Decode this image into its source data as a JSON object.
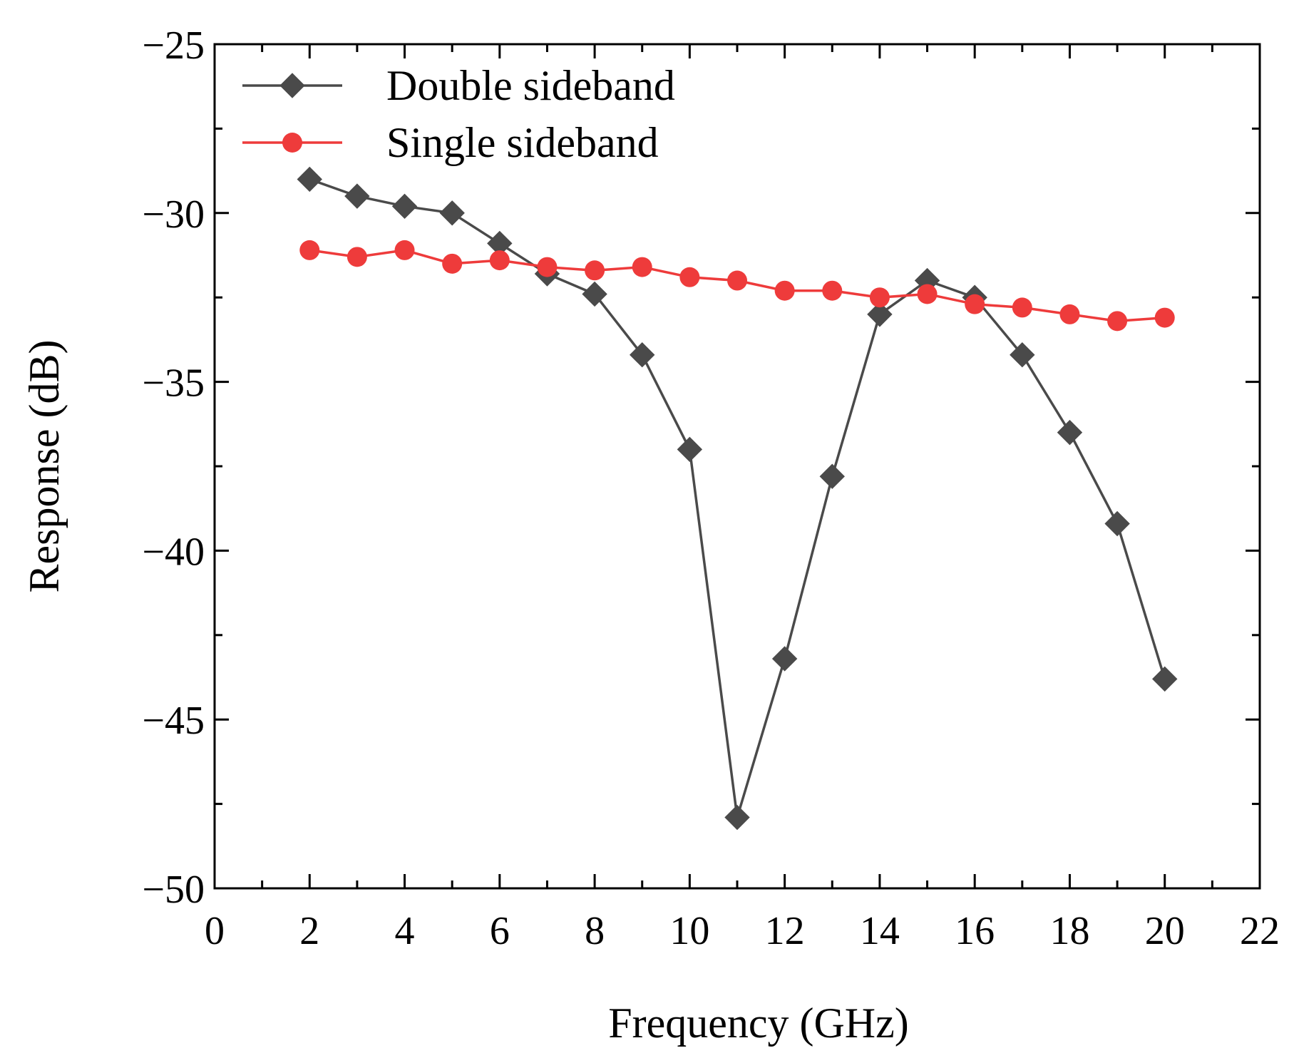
{
  "chart_data": {
    "type": "line",
    "title": "",
    "xlabel": "Frequency (GHz)",
    "ylabel": "Response (dB)",
    "xlim": [
      0,
      22
    ],
    "ylim": [
      -50,
      -25
    ],
    "x_ticks": [
      0,
      2,
      4,
      6,
      8,
      10,
      12,
      14,
      16,
      18,
      20,
      22
    ],
    "x_tick_labels": [
      "0",
      "2",
      "4",
      "6",
      "8",
      "10",
      "12",
      "14",
      "16",
      "18",
      "20",
      "22"
    ],
    "y_ticks": [
      -50,
      -45,
      -40,
      -35,
      -30,
      -25
    ],
    "y_tick_labels": [
      "−50",
      "−45",
      "−40",
      "−35",
      "−30",
      "−25"
    ],
    "grid": false,
    "legend_position": "top-left",
    "x": [
      2,
      3,
      4,
      5,
      6,
      7,
      8,
      9,
      10,
      11,
      12,
      13,
      14,
      15,
      16,
      17,
      18,
      19,
      20
    ],
    "series": [
      {
        "name": "Double sideband",
        "color": "#4a4a4a",
        "marker": "diamond",
        "values": [
          -29.0,
          -29.5,
          -29.8,
          -30.0,
          -30.9,
          -31.8,
          -32.4,
          -34.2,
          -37.0,
          -47.9,
          -43.2,
          -37.8,
          -33.0,
          -32.0,
          -32.5,
          -34.2,
          -36.5,
          -39.2,
          -43.8
        ]
      },
      {
        "name": "Single sideband",
        "color": "#ee3b3b",
        "marker": "circle",
        "values": [
          -31.1,
          -31.3,
          -31.1,
          -31.5,
          -31.4,
          -31.6,
          -31.7,
          -31.6,
          -31.9,
          -32.0,
          -32.3,
          -32.3,
          -32.5,
          -32.4,
          -32.7,
          -32.8,
          -33.0,
          -33.2,
          -33.1
        ]
      }
    ]
  }
}
